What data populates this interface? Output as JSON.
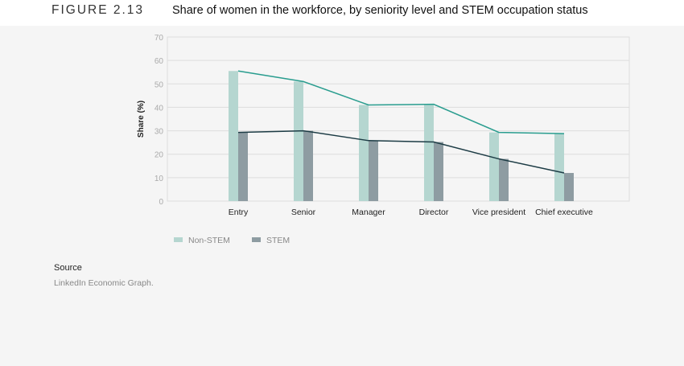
{
  "figure_label": "FIGURE 2.13",
  "chart_data": {
    "type": "bar",
    "title": "Share of women in the workforce, by seniority level and STEM occupation status",
    "ylabel": "Share (%)",
    "xlabel": "",
    "ylim": [
      0,
      70
    ],
    "yticks": [
      0,
      10,
      20,
      30,
      40,
      50,
      60,
      70
    ],
    "grid": true,
    "legend_position": "bottom-left",
    "categories": [
      "Entry",
      "Senior",
      "Manager",
      "Director",
      "Vice president",
      "Chief executive"
    ],
    "series": [
      {
        "name": "Non-STEM",
        "values": [
          55.5,
          51,
          41,
          41.3,
          29.3,
          28.8
        ],
        "bar_color": "#b5d6d0",
        "line_color": "#2a9d8f"
      },
      {
        "name": "STEM",
        "values": [
          29.3,
          30,
          25.8,
          25.2,
          18,
          12
        ],
        "bar_color": "#8e9ca2",
        "line_color": "#1d3c45"
      }
    ],
    "overlay": "line through bar tops for each series"
  },
  "source": {
    "heading": "Source",
    "text": "LinkedIn Economic Graph."
  }
}
